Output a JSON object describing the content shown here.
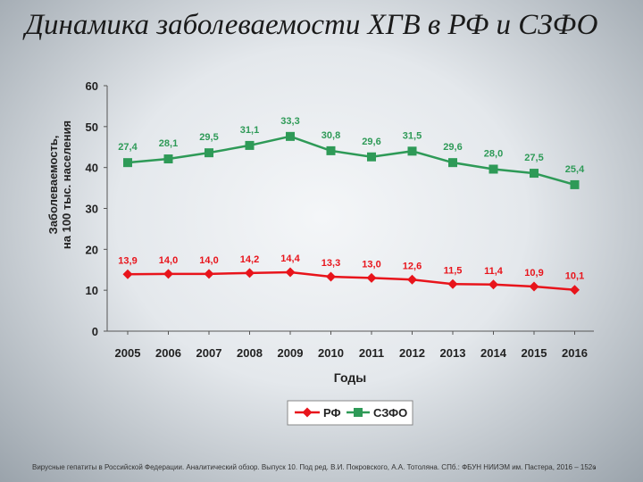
{
  "page": {
    "title": "Динамика заболеваемости ХГВ в РФ и СЗФО",
    "citation": "Вирусные гепатиты в Российской Федерации. Аналитический обзор. Выпуск 10. Под ред. В.И. Покровского, А.А. Тотоляна. СПб.: ФБУН НИИЭМ им. Пастера, 2016 – 152с",
    "bullet": "."
  },
  "chart_data": {
    "type": "line",
    "title": "",
    "xlabel": "Годы",
    "ylabel_lines": [
      "Заболеваемость,",
      "на 100 тыс. населения"
    ],
    "ylim": [
      0,
      60
    ],
    "yticks": [
      0,
      10,
      20,
      30,
      40,
      50,
      60
    ],
    "categories": [
      "2005",
      "2006",
      "2007",
      "2008",
      "2009",
      "2010",
      "2011",
      "2012",
      "2013",
      "2014",
      "2015",
      "2016"
    ],
    "legend_position": "bottom",
    "grid": false,
    "series": [
      {
        "name": "РФ",
        "color": "#e8141b",
        "marker": "diamond",
        "values": [
          13.9,
          14.0,
          14.0,
          14.2,
          14.4,
          13.3,
          13.0,
          12.6,
          11.5,
          11.4,
          10.9,
          10.1
        ],
        "labels": [
          "13,9",
          "14,0",
          "14,0",
          "14,2",
          "14,4",
          "13,3",
          "13,0",
          "12,6",
          "11,5",
          "11,4",
          "10,9",
          "10,1"
        ]
      },
      {
        "name": "СЗФО",
        "color": "#2e9a57",
        "marker": "square",
        "values": [
          41.2,
          42.1,
          43.6,
          45.4,
          47.6,
          44.1,
          42.6,
          44.0,
          41.2,
          39.6,
          38.6,
          35.8
        ],
        "labels": [
          "27,4",
          "28,1",
          "29,5",
          "31,1",
          "33,3",
          "30,8",
          "29,6",
          "31,5",
          "29,6",
          "28,0",
          "27,5",
          "25,4"
        ]
      }
    ]
  }
}
